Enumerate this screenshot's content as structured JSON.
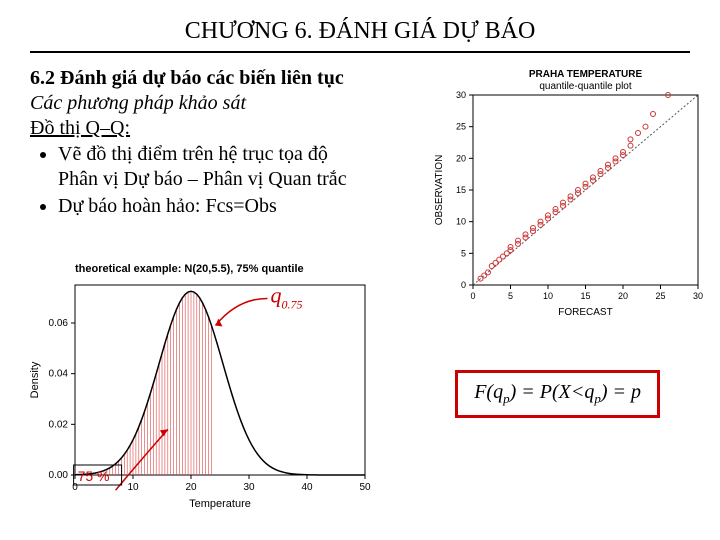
{
  "title": "CHƯƠNG 6. ĐÁNH GIÁ DỰ BÁO",
  "section": "6.2 Đánh giá dự báo các biến liên tục",
  "method_line": "Các phương pháp khảo sát",
  "subheading": "Đồ thị Q–Q:",
  "bullet1_line1": "Vẽ đồ thị điểm trên hệ trục tọa độ",
  "bullet1_line2": "Phân vị Dự báo – Phân vị Quan trắc",
  "bullet2": "Dự báo hoàn hảo: Fcs=Obs",
  "formula": {
    "lhs": "F(q",
    "sub": "p",
    "mid": ") = P(X<q",
    "rhs": ") = p"
  },
  "qq": {
    "title1": "PRAHA TEMPERATURE",
    "title2": "quantile-quantile plot",
    "xlabel": "FORECAST",
    "ylabel": "OBSERVATION",
    "xlim": [
      0,
      30
    ],
    "ylim": [
      0,
      30
    ],
    "xticks": [
      0,
      5,
      10,
      15,
      20,
      25,
      30
    ],
    "yticks": [
      0,
      5,
      10,
      15,
      20,
      25,
      30
    ],
    "line_color": "#555555",
    "point_color": "#cc3333",
    "grid_color": "#000000",
    "bg": "#ffffff",
    "points": [
      [
        1,
        1
      ],
      [
        1.5,
        1.5
      ],
      [
        2,
        2
      ],
      [
        2.5,
        3
      ],
      [
        3,
        3.5
      ],
      [
        3.5,
        4
      ],
      [
        4,
        4.5
      ],
      [
        4.5,
        5
      ],
      [
        5,
        5.5
      ],
      [
        5,
        6
      ],
      [
        6,
        6.5
      ],
      [
        6,
        7
      ],
      [
        7,
        7.5
      ],
      [
        7,
        8
      ],
      [
        8,
        8.5
      ],
      [
        8,
        9
      ],
      [
        9,
        9.5
      ],
      [
        9,
        10
      ],
      [
        10,
        10.5
      ],
      [
        10,
        11
      ],
      [
        11,
        11.5
      ],
      [
        11,
        12
      ],
      [
        12,
        12.5
      ],
      [
        12,
        13
      ],
      [
        13,
        13.5
      ],
      [
        13,
        14
      ],
      [
        14,
        14.5
      ],
      [
        14,
        15
      ],
      [
        15,
        15.5
      ],
      [
        15,
        16
      ],
      [
        16,
        16.5
      ],
      [
        16,
        17
      ],
      [
        17,
        17.5
      ],
      [
        17,
        18
      ],
      [
        18,
        18.5
      ],
      [
        18,
        19
      ],
      [
        19,
        19.5
      ],
      [
        19,
        20
      ],
      [
        20,
        20.5
      ],
      [
        20,
        21
      ],
      [
        21,
        22
      ],
      [
        21,
        23
      ],
      [
        22,
        24
      ],
      [
        23,
        25
      ],
      [
        24,
        27
      ],
      [
        26,
        30
      ]
    ]
  },
  "density": {
    "title": "theoretical example: N(20,5.5), 75% quantile",
    "xlabel": "Temperature",
    "ylabel": "Density",
    "xlim": [
      0,
      50
    ],
    "ylim": [
      0.0,
      0.075
    ],
    "xticks": [
      0,
      10,
      20,
      30,
      40,
      50
    ],
    "yticks": [
      0.0,
      0.02,
      0.04,
      0.06
    ],
    "ytick_labels": [
      "0.00",
      "0.02",
      "0.04",
      "0.06"
    ],
    "curve_color": "#000000",
    "fill_color": "#dd4444",
    "annot_color": "#cc0000",
    "bg": "#ffffff",
    "mu": 20,
    "sigma": 5.5,
    "q": 23.7,
    "label75": "75 %",
    "labelq": "q",
    "labelq_sub": "0.75"
  }
}
